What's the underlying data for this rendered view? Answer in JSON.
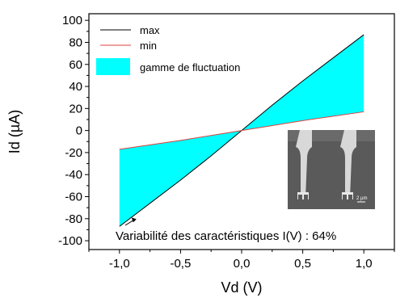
{
  "chart_data": {
    "type": "area",
    "title": "",
    "xlabel": "Vd (V)",
    "ylabel": "Id  (µA)",
    "xlim": [
      -1.25,
      1.25
    ],
    "ylim": [
      -108,
      106
    ],
    "x_ticks": [
      -1.0,
      -0.5,
      0.0,
      0.5,
      1.0
    ],
    "x_tick_labels": [
      "-1,0",
      "-0,5",
      "0,0",
      "0,5",
      "1,0"
    ],
    "y_ticks": [
      -100,
      -80,
      -60,
      -40,
      -20,
      0,
      20,
      40,
      60,
      80,
      100
    ],
    "y_tick_labels": [
      "-100",
      "-80",
      "-60",
      "-40",
      "-20",
      "0",
      "20",
      "40",
      "60",
      "80",
      "100"
    ],
    "grid": false,
    "legend_position": "top-left",
    "series": [
      {
        "name": "max",
        "color": "#000000",
        "x": [
          -1.0,
          -0.75,
          -0.5,
          -0.25,
          0.0,
          0.25,
          0.5,
          0.75,
          1.0
        ],
        "y": [
          -87,
          -66,
          -45,
          -23,
          0,
          23,
          45,
          66,
          87
        ]
      },
      {
        "name": "min",
        "color": "#e04040",
        "x": [
          -1.0,
          -0.75,
          -0.5,
          -0.25,
          0.0,
          0.25,
          0.5,
          0.75,
          1.0
        ],
        "y": [
          -17,
          -13,
          -9,
          -4.5,
          0,
          4.5,
          9,
          13,
          17
        ]
      }
    ],
    "fill": {
      "label": "gamme de fluctuation",
      "color": "#00ffff"
    },
    "annotation": {
      "text": "Variabilité des caractéristiques I(V) : 64%",
      "arrow_to": [
        -1.0,
        -87
      ]
    },
    "inset": {
      "scale_label": "2 µm"
    }
  }
}
